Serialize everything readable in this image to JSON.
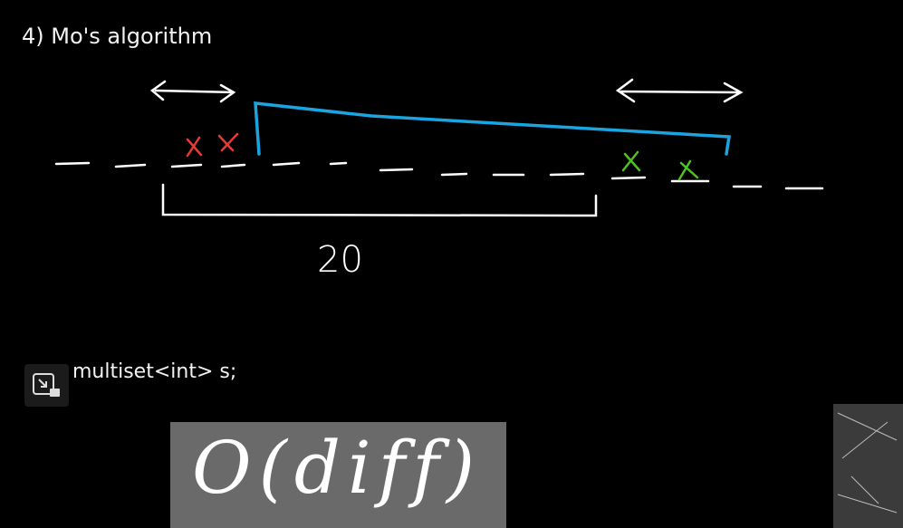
{
  "header": {
    "title": "4) Mo's algorithm"
  },
  "sketch": {
    "length_label": "20"
  },
  "code": {
    "line": "multiset<int> s;"
  },
  "overlay": {
    "complexity": "O(diff)"
  }
}
